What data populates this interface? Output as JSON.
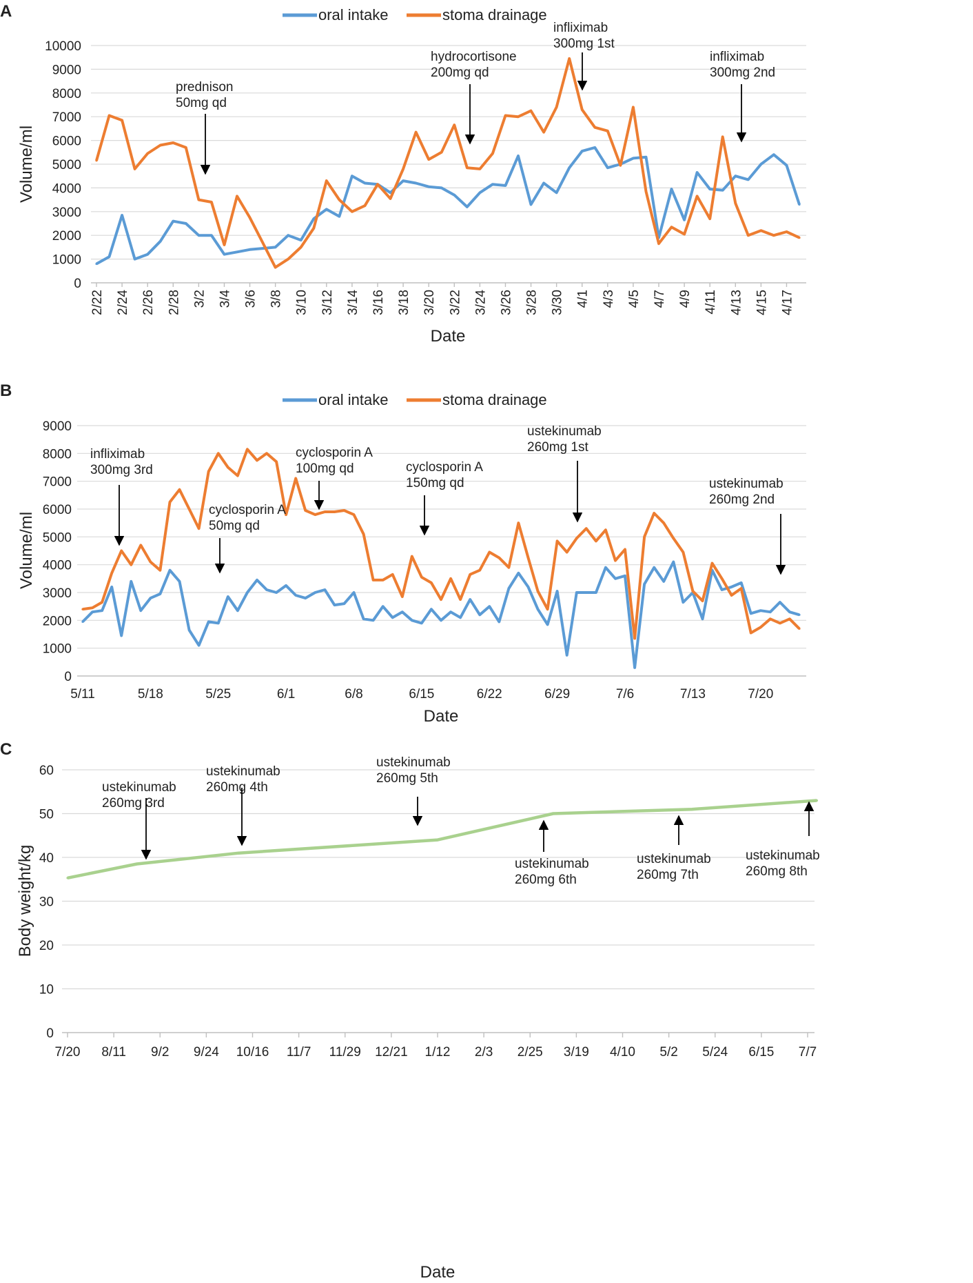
{
  "colors": {
    "oral_intake": "#5b9bd5",
    "stoma_drainage": "#ed7d31",
    "body_weight": "#a9d18e",
    "arrow": "#000000"
  },
  "chart_data": [
    {
      "panel": "A",
      "type": "line",
      "legend": [
        "oral intake",
        "stoma drainage"
      ],
      "legend_position": "top",
      "ylabel": "Volume/ml",
      "xlabel": "Date",
      "ylim": [
        0,
        10000
      ],
      "yticks": [
        0,
        1000,
        2000,
        3000,
        4000,
        5000,
        6000,
        7000,
        8000,
        9000,
        10000
      ],
      "x_tick_labels": [
        "2/22",
        "2/24",
        "2/26",
        "2/28",
        "3/2",
        "3/4",
        "3/6",
        "3/8",
        "3/10",
        "3/12",
        "3/14",
        "3/16",
        "3/18",
        "3/20",
        "3/22",
        "3/24",
        "3/26",
        "3/28",
        "3/30",
        "4/1",
        "4/3",
        "4/5",
        "4/7",
        "4/9",
        "4/11",
        "4/13",
        "4/15",
        "4/17"
      ],
      "series": [
        {
          "name": "oral intake",
          "values": [
            800,
            1100,
            2850,
            1000,
            1200,
            1750,
            2600,
            2500,
            2000,
            2000,
            1200,
            1300,
            1400,
            1450,
            1500,
            2000,
            1800,
            2700,
            3100,
            2800,
            4500,
            4200,
            4150,
            3800,
            4300,
            4200,
            4050,
            4000,
            3700,
            3200,
            3800,
            4150,
            4100,
            5350,
            3300,
            4200,
            3800,
            4850,
            5550,
            5700,
            4850,
            5000,
            5250,
            5300,
            1900,
            3950,
            2650,
            4650,
            3950,
            3900,
            4500,
            4350,
            5000,
            5400,
            4950,
            3300
          ]
        },
        {
          "name": "stoma drainage",
          "values": [
            5150,
            7050,
            6850,
            4800,
            5450,
            5800,
            5900,
            5700,
            3500,
            3400,
            1600,
            3650,
            2750,
            1700,
            650,
            1000,
            1500,
            2300,
            4300,
            3500,
            3000,
            3250,
            4150,
            3550,
            4800,
            6350,
            5200,
            5500,
            6650,
            4850,
            4800,
            5450,
            7050,
            7000,
            7250,
            6350,
            7400,
            9450,
            7300,
            6550,
            6400,
            4950,
            7400,
            3850,
            1650,
            2350,
            2050,
            3650,
            2700,
            6150,
            3350,
            2000,
            2200,
            2000,
            2150,
            1900
          ]
        }
      ],
      "annotations": [
        {
          "lines": [
            "prednison",
            "50mg qd"
          ],
          "x_index": 8.25,
          "direction": "down"
        },
        {
          "lines": [
            "hydrocortisone",
            "200mg qd"
          ],
          "x_index": 29.75,
          "direction": "down"
        },
        {
          "lines": [
            "infliximab",
            "300mg 1st"
          ],
          "x_index": 38.5,
          "direction": "down"
        },
        {
          "lines": [
            "infliximab",
            "300mg 2nd"
          ],
          "x_index": 50.4,
          "direction": "down"
        }
      ]
    },
    {
      "panel": "B",
      "type": "line",
      "legend": [
        "oral intake",
        "stoma drainage"
      ],
      "legend_position": "top",
      "ylabel": "Volume/ml",
      "xlabel": "Date",
      "ylim": [
        0,
        9000
      ],
      "yticks": [
        0,
        1000,
        2000,
        3000,
        4000,
        5000,
        6000,
        7000,
        8000,
        9000
      ],
      "x_tick_labels": [
        "5/11",
        "5/18",
        "5/25",
        "6/1",
        "6/8",
        "6/15",
        "6/22",
        "6/29",
        "7/6",
        "7/13",
        "7/20"
      ],
      "series": [
        {
          "name": "oral intake",
          "values": [
            1950,
            2300,
            2350,
            3200,
            1450,
            3400,
            2350,
            2800,
            2950,
            3800,
            3400,
            1650,
            1100,
            1950,
            1900,
            2850,
            2350,
            3000,
            3450,
            3100,
            3000,
            3250,
            2900,
            2800,
            3000,
            3100,
            2550,
            2600,
            3000,
            2050,
            2000,
            2500,
            2100,
            2300,
            2000,
            1900,
            2400,
            2000,
            2300,
            2100,
            2750,
            2200,
            2500,
            1950,
            3150,
            3700,
            3200,
            2400,
            1850,
            3050,
            750,
            3000,
            3000,
            3000,
            3900,
            3500,
            3600,
            300,
            3300,
            3900,
            3400,
            4100,
            2650,
            3000,
            2050,
            3800,
            3100,
            3200,
            3350,
            2250,
            2350,
            2300,
            2650,
            2300,
            2200
          ]
        },
        {
          "name": "stoma drainage",
          "values": [
            2400,
            2450,
            2650,
            3700,
            4500,
            4000,
            4700,
            4100,
            3800,
            6250,
            6700,
            6000,
            5300,
            7350,
            8000,
            7500,
            7200,
            8150,
            7750,
            8000,
            7700,
            5800,
            7100,
            5950,
            5800,
            5900,
            5900,
            5950,
            5800,
            5100,
            3450,
            3450,
            3650,
            2850,
            4300,
            3550,
            3350,
            2750,
            3500,
            2750,
            3650,
            3800,
            4450,
            4250,
            3900,
            5500,
            4250,
            3050,
            2400,
            4850,
            4450,
            4950,
            5300,
            4850,
            5250,
            4150,
            4550,
            1350,
            5000,
            5850,
            5500,
            4950,
            4450,
            3050,
            2700,
            4050,
            3500,
            2900,
            3150,
            1550,
            1750,
            2050,
            1900,
            2050,
            1700
          ]
        }
      ],
      "annotations": [
        {
          "lines": [
            "infliximab",
            "300mg 3rd"
          ],
          "x_index": 3.1,
          "direction": "down"
        },
        {
          "lines": [
            "cyclosporin A",
            "50mg qd"
          ],
          "x_index": 13.5,
          "direction": "down"
        },
        {
          "lines": [
            "cyclosporin A",
            "100mg qd"
          ],
          "x_index": 24,
          "direction": "down"
        },
        {
          "lines": [
            "cyclosporin A",
            "150mg qd"
          ],
          "x_index": 34.7,
          "direction": "down"
        },
        {
          "lines": [
            "ustekinumab",
            "260mg 1st"
          ],
          "x_index": 50.6,
          "direction": "down"
        },
        {
          "lines": [
            "ustekinumab",
            "260mg 2nd"
          ],
          "x_index": 72.2,
          "direction": "down"
        }
      ]
    },
    {
      "panel": "C",
      "type": "line",
      "ylabel": "Body weight/kg",
      "xlabel": "Date",
      "ylim": [
        0,
        60
      ],
      "yticks": [
        0,
        10,
        20,
        30,
        40,
        50,
        60
      ],
      "x_tick_labels": [
        "7/20",
        "8/11",
        "9/2",
        "9/24",
        "10/16",
        "11/7",
        "11/29",
        "12/21",
        "1/12",
        "2/3",
        "2/25",
        "3/19",
        "4/10",
        "5/2",
        "5/24",
        "6/15",
        "7/7"
      ],
      "series": [
        {
          "name": "body weight",
          "x_index": [
            0,
            1.5,
            3.7,
            8,
            10.5,
            13.5,
            16.2
          ],
          "values": [
            35.3,
            38.5,
            41.0,
            44.0,
            50.0,
            51.0,
            53.0
          ]
        }
      ],
      "annotations": [
        {
          "lines": [
            "ustekinumab",
            "260mg 3rd"
          ],
          "x_index": 1.75,
          "direction": "down"
        },
        {
          "lines": [
            "ustekinumab",
            "260mg 4th"
          ],
          "x_index": 3.8,
          "direction": "down"
        },
        {
          "lines": [
            "ustekinumab",
            "260mg 5th"
          ],
          "x_index": 7.7,
          "direction": "down"
        },
        {
          "lines": [
            "ustekinumab",
            "260mg 6th"
          ],
          "x_index": 10.55,
          "direction": "up"
        },
        {
          "lines": [
            "ustekinumab",
            "260mg 7th"
          ],
          "x_index": 13.25,
          "direction": "up"
        },
        {
          "lines": [
            "ustekinumab",
            "260mg 8th"
          ],
          "x_index": 16.2,
          "direction": "up"
        }
      ]
    }
  ]
}
